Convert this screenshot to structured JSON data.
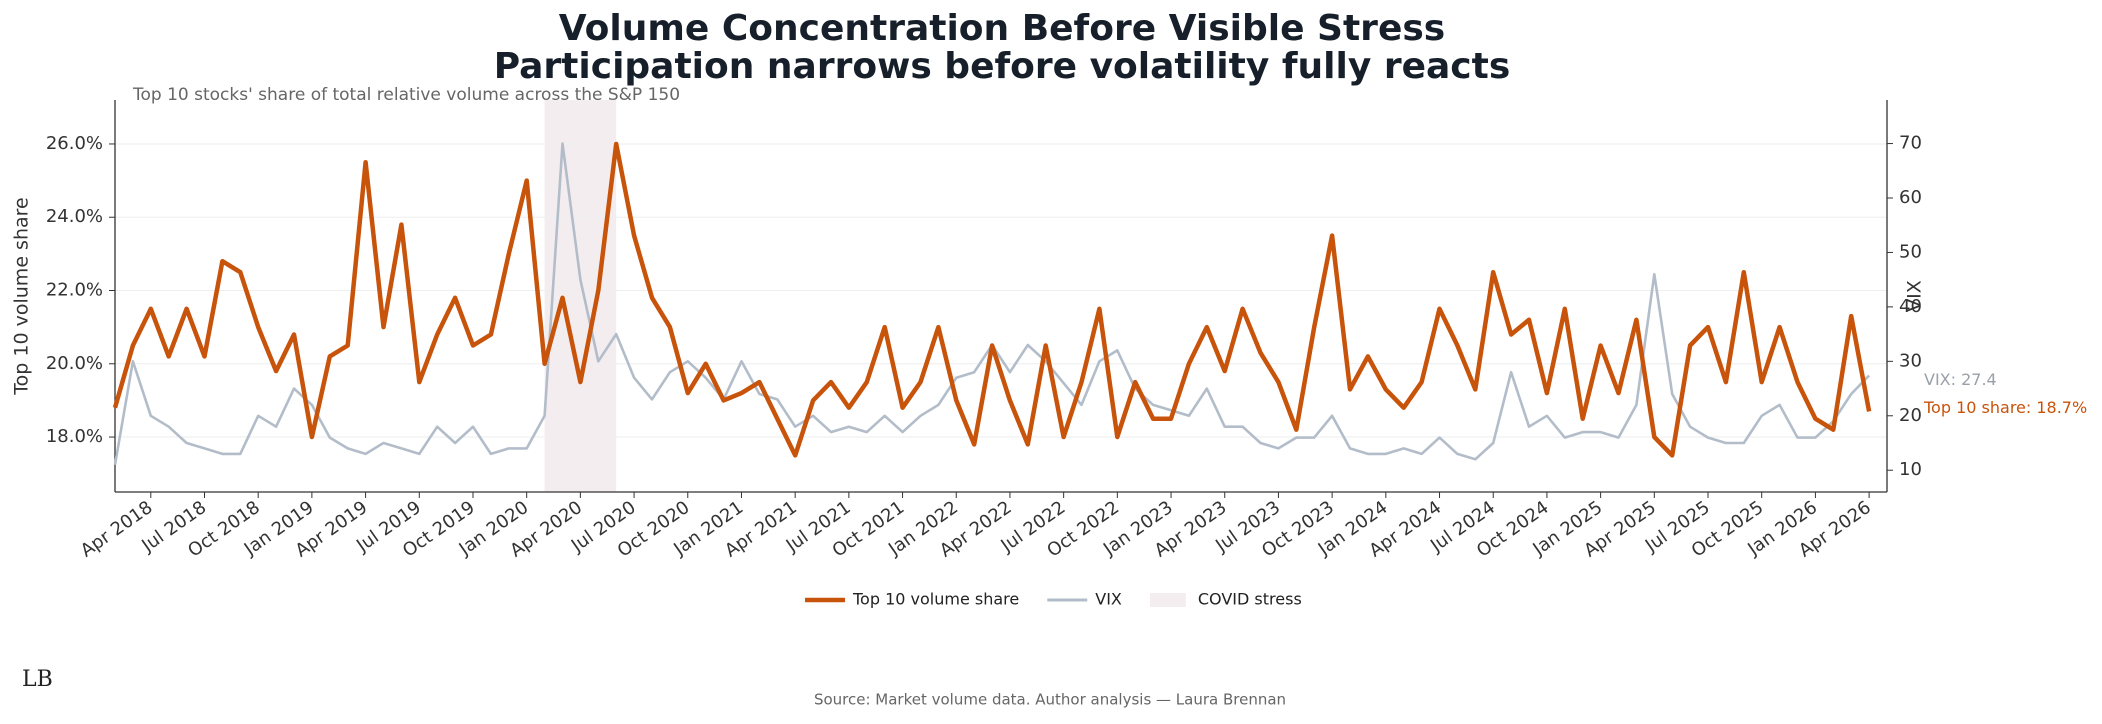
{
  "chart_data": {
    "type": "line",
    "title": [
      "Volume Concentration Before Visible Stress",
      "Participation narrows before volatility fully reacts"
    ],
    "subtitle": "Top 10 stocks' share of total relative volume across the S&P 150",
    "y_label": "Top 10 volume share",
    "y2_label": "VIX",
    "source": "Source: Market volume data. Author analysis — Laura Brennan",
    "logo": "LB",
    "x": [
      "2018-02",
      "2018-03",
      "2018-04",
      "2018-05",
      "2018-06",
      "2018-07",
      "2018-08",
      "2018-09",
      "2018-10",
      "2018-11",
      "2018-12",
      "2019-01",
      "2019-02",
      "2019-03",
      "2019-04",
      "2019-05",
      "2019-06",
      "2019-07",
      "2019-08",
      "2019-09",
      "2019-10",
      "2019-11",
      "2019-12",
      "2020-01",
      "2020-02",
      "2020-03",
      "2020-04",
      "2020-05",
      "2020-06",
      "2020-07",
      "2020-08",
      "2020-09",
      "2020-10",
      "2020-11",
      "2020-12",
      "2021-01",
      "2021-02",
      "2021-03",
      "2021-04",
      "2021-05",
      "2021-06",
      "2021-07",
      "2021-08",
      "2021-09",
      "2021-10",
      "2021-11",
      "2021-12",
      "2022-01",
      "2022-02",
      "2022-03",
      "2022-04",
      "2022-05",
      "2022-06",
      "2022-07",
      "2022-08",
      "2022-09",
      "2022-10",
      "2022-11",
      "2022-12",
      "2023-01",
      "2023-02",
      "2023-03",
      "2023-04",
      "2023-05",
      "2023-06",
      "2023-07",
      "2023-08",
      "2023-09",
      "2023-10",
      "2023-11",
      "2023-12",
      "2024-01",
      "2024-02",
      "2024-03",
      "2024-04",
      "2024-05",
      "2024-06",
      "2024-07",
      "2024-08",
      "2024-09",
      "2024-10",
      "2024-11",
      "2024-12",
      "2025-01",
      "2025-02",
      "2025-03",
      "2025-04",
      "2025-05",
      "2025-06",
      "2025-07",
      "2025-08",
      "2025-09",
      "2025-10",
      "2025-11",
      "2025-12",
      "2026-01",
      "2026-02",
      "2026-03",
      "2026-04"
    ],
    "series": [
      {
        "name": "Top 10 volume share",
        "color": "#c8530a",
        "axis": "y",
        "end_label": "Top 10 share: 18.7%",
        "values": [
          18.8,
          20.5,
          21.5,
          20.2,
          21.5,
          20.2,
          22.8,
          22.5,
          21.0,
          19.8,
          20.8,
          18.0,
          20.2,
          20.5,
          25.5,
          21.0,
          23.8,
          19.5,
          20.8,
          21.8,
          20.5,
          20.8,
          23.0,
          25.0,
          20.0,
          21.8,
          19.5,
          22.0,
          26.0,
          23.5,
          21.8,
          21.0,
          19.2,
          20.0,
          19.0,
          19.2,
          19.5,
          18.5,
          17.5,
          19.0,
          19.5,
          18.8,
          19.5,
          21.0,
          18.8,
          19.5,
          21.0,
          19.0,
          17.8,
          20.5,
          19.0,
          17.8,
          20.5,
          18.0,
          19.5,
          21.5,
          18.0,
          19.5,
          18.5,
          18.5,
          20.0,
          21.0,
          19.8,
          21.5,
          20.3,
          19.5,
          18.2,
          21.0,
          23.5,
          19.3,
          20.2,
          19.3,
          18.8,
          19.5,
          21.5,
          20.5,
          19.3,
          22.5,
          20.8,
          21.2,
          19.2,
          21.5,
          18.5,
          20.5,
          19.2,
          21.2,
          18.0,
          17.5,
          20.5,
          21.0,
          19.5,
          22.5,
          19.5,
          21.0,
          19.5,
          18.5,
          18.2,
          21.3,
          18.7
        ]
      },
      {
        "name": "VIX",
        "color": "#b3bdc9",
        "axis": "y2",
        "end_label": "VIX: 27.4",
        "values": [
          11,
          30,
          20,
          18,
          15,
          14,
          13,
          13,
          20,
          18,
          25,
          22,
          16,
          14,
          13,
          15,
          14,
          13,
          18,
          15,
          18,
          13,
          14,
          14,
          20,
          70,
          45,
          30,
          35,
          27,
          23,
          28,
          30,
          27,
          23,
          30,
          24,
          23,
          18,
          20,
          17,
          18,
          17,
          20,
          17,
          20,
          22,
          27,
          28,
          33,
          28,
          33,
          30,
          26,
          22,
          30,
          32,
          25,
          22,
          21,
          20,
          25,
          18,
          18,
          15,
          14,
          16,
          16,
          20,
          14,
          13,
          13,
          14,
          13,
          16,
          13,
          12,
          15,
          28,
          18,
          20,
          16,
          17,
          17,
          16,
          22,
          46,
          24,
          18,
          16,
          15,
          15,
          20,
          22,
          16,
          16,
          19,
          24,
          27.4
        ]
      }
    ],
    "spans": [
      {
        "name": "COVID stress",
        "start": "2020-02",
        "end": "2020-06",
        "color": "#f4edf0"
      }
    ],
    "xlim": [
      "2018-02",
      "2026-05"
    ],
    "xticks": [
      {
        "value": "2018-04",
        "label": "Apr 2018"
      },
      {
        "value": "2018-07",
        "label": "Jul 2018"
      },
      {
        "value": "2018-10",
        "label": "Oct 2018"
      },
      {
        "value": "2019-01",
        "label": "Jan 2019"
      },
      {
        "value": "2019-04",
        "label": "Apr 2019"
      },
      {
        "value": "2019-07",
        "label": "Jul 2019"
      },
      {
        "value": "2019-10",
        "label": "Oct 2019"
      },
      {
        "value": "2020-01",
        "label": "Jan 2020"
      },
      {
        "value": "2020-04",
        "label": "Apr 2020"
      },
      {
        "value": "2020-07",
        "label": "Jul 2020"
      },
      {
        "value": "2020-10",
        "label": "Oct 2020"
      },
      {
        "value": "2021-01",
        "label": "Jan 2021"
      },
      {
        "value": "2021-04",
        "label": "Apr 2021"
      },
      {
        "value": "2021-07",
        "label": "Jul 2021"
      },
      {
        "value": "2021-10",
        "label": "Oct 2021"
      },
      {
        "value": "2022-01",
        "label": "Jan 2022"
      },
      {
        "value": "2022-04",
        "label": "Apr 2022"
      },
      {
        "value": "2022-07",
        "label": "Jul 2022"
      },
      {
        "value": "2022-10",
        "label": "Oct 2022"
      },
      {
        "value": "2023-01",
        "label": "Jan 2023"
      },
      {
        "value": "2023-04",
        "label": "Apr 2023"
      },
      {
        "value": "2023-07",
        "label": "Jul 2023"
      },
      {
        "value": "2023-10",
        "label": "Oct 2023"
      },
      {
        "value": "2024-01",
        "label": "Jan 2024"
      },
      {
        "value": "2024-04",
        "label": "Apr 2024"
      },
      {
        "value": "2024-07",
        "label": "Jul 2024"
      },
      {
        "value": "2024-10",
        "label": "Oct 2024"
      },
      {
        "value": "2025-01",
        "label": "Jan 2025"
      },
      {
        "value": "2025-04",
        "label": "Apr 2025"
      },
      {
        "value": "2025-07",
        "label": "Jul 2025"
      },
      {
        "value": "2025-10",
        "label": "Oct 2025"
      },
      {
        "value": "2026-01",
        "label": "Jan 2026"
      },
      {
        "value": "2026-04",
        "label": "Apr 2026"
      }
    ],
    "ylim": [
      16.5,
      27.2
    ],
    "yticks": [
      {
        "value": 18,
        "label": "18.0%"
      },
      {
        "value": 20,
        "label": "20.0%"
      },
      {
        "value": 22,
        "label": "22.0%"
      },
      {
        "value": 24,
        "label": "24.0%"
      },
      {
        "value": 26,
        "label": "26.0%"
      }
    ],
    "y2lim": [
      6,
      78
    ],
    "y2ticks": [
      10,
      20,
      30,
      40,
      50,
      60,
      70
    ],
    "grid": true
  }
}
